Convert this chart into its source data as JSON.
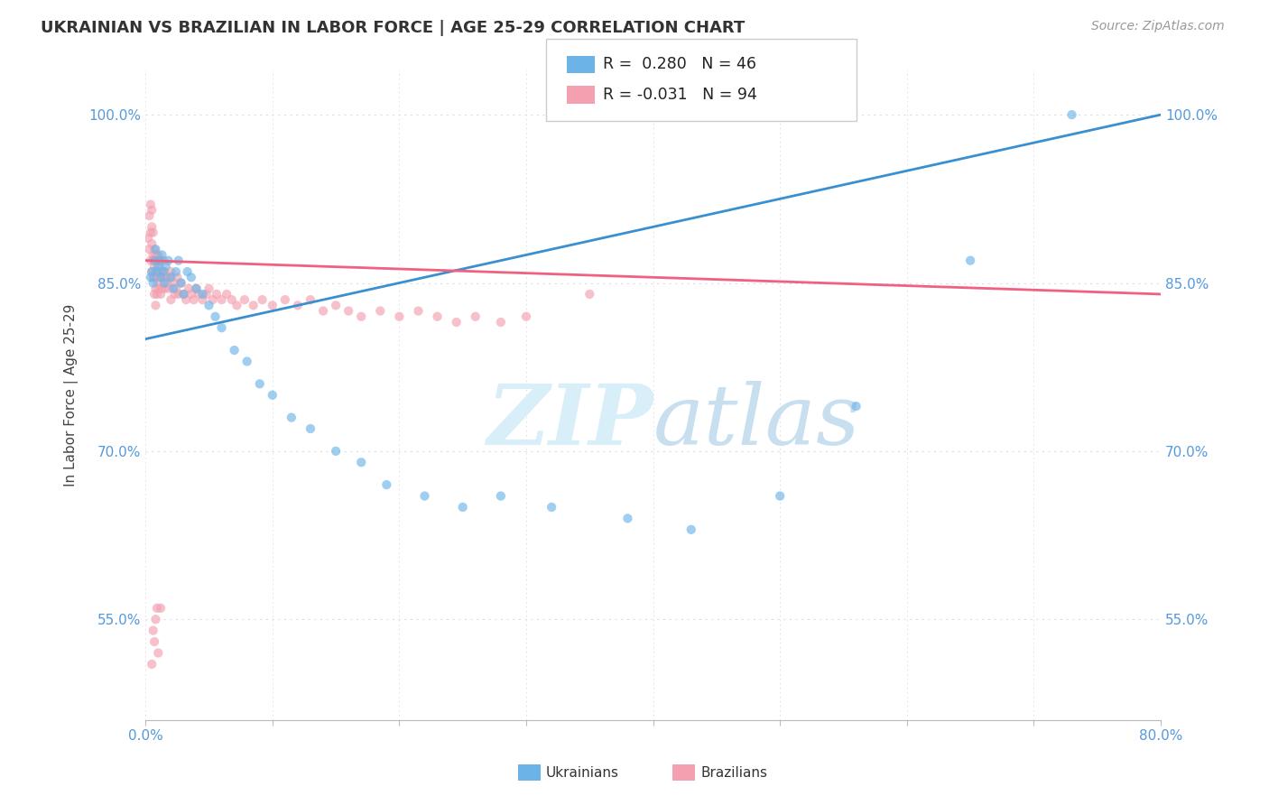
{
  "title": "UKRAINIAN VS BRAZILIAN IN LABOR FORCE | AGE 25-29 CORRELATION CHART",
  "source_text": "Source: ZipAtlas.com",
  "ylabel": "In Labor Force | Age 25-29",
  "xlim": [
    0.0,
    0.8
  ],
  "ylim": [
    0.46,
    1.04
  ],
  "xticks": [
    0.0,
    0.1,
    0.2,
    0.3,
    0.4,
    0.5,
    0.6,
    0.7,
    0.8
  ],
  "xticklabels": [
    "0.0%",
    "",
    "",
    "",
    "",
    "",
    "",
    "",
    "80.0%"
  ],
  "yticks": [
    0.55,
    0.7,
    0.85,
    1.0
  ],
  "yticklabels": [
    "55.0%",
    "70.0%",
    "85.0%",
    "100.0%"
  ],
  "legend_R_ukrainian": "0.280",
  "legend_N_ukrainian": "46",
  "legend_R_brazilian": "-0.031",
  "legend_N_brazilian": "94",
  "ukrainian_color": "#6cb4e8",
  "brazilian_color": "#f4a0b0",
  "trend_ukrainian_color": "#3a8fd1",
  "trend_brazilian_color": "#f06080",
  "watermark_color": "#d8eef8",
  "dot_size": 55,
  "dot_alpha": 0.65,
  "grid_color": "#dddddd",
  "background_color": "#ffffff",
  "ukrainian_x": [
    0.004,
    0.005,
    0.006,
    0.007,
    0.008,
    0.009,
    0.01,
    0.011,
    0.012,
    0.013,
    0.014,
    0.015,
    0.016,
    0.018,
    0.02,
    0.022,
    0.024,
    0.026,
    0.028,
    0.03,
    0.033,
    0.036,
    0.04,
    0.045,
    0.05,
    0.055,
    0.06,
    0.07,
    0.08,
    0.09,
    0.1,
    0.115,
    0.13,
    0.15,
    0.17,
    0.19,
    0.22,
    0.25,
    0.28,
    0.32,
    0.38,
    0.43,
    0.5,
    0.56,
    0.65,
    0.73
  ],
  "ukrainian_y": [
    0.855,
    0.86,
    0.85,
    0.87,
    0.88,
    0.86,
    0.865,
    0.87,
    0.855,
    0.875,
    0.86,
    0.85,
    0.865,
    0.87,
    0.855,
    0.845,
    0.86,
    0.87,
    0.85,
    0.84,
    0.86,
    0.855,
    0.845,
    0.84,
    0.83,
    0.82,
    0.81,
    0.79,
    0.78,
    0.76,
    0.75,
    0.73,
    0.72,
    0.7,
    0.69,
    0.67,
    0.66,
    0.65,
    0.66,
    0.65,
    0.64,
    0.63,
    0.66,
    0.74,
    0.87,
    1.0
  ],
  "brazilian_x": [
    0.002,
    0.003,
    0.003,
    0.004,
    0.004,
    0.004,
    0.005,
    0.005,
    0.005,
    0.005,
    0.006,
    0.006,
    0.006,
    0.006,
    0.007,
    0.007,
    0.007,
    0.007,
    0.008,
    0.008,
    0.008,
    0.008,
    0.009,
    0.009,
    0.009,
    0.01,
    0.01,
    0.01,
    0.011,
    0.011,
    0.012,
    0.012,
    0.012,
    0.013,
    0.013,
    0.014,
    0.014,
    0.015,
    0.015,
    0.016,
    0.017,
    0.018,
    0.019,
    0.02,
    0.02,
    0.022,
    0.023,
    0.024,
    0.025,
    0.026,
    0.028,
    0.03,
    0.032,
    0.034,
    0.036,
    0.038,
    0.04,
    0.042,
    0.045,
    0.048,
    0.05,
    0.053,
    0.056,
    0.06,
    0.064,
    0.068,
    0.072,
    0.078,
    0.085,
    0.092,
    0.1,
    0.11,
    0.12,
    0.13,
    0.14,
    0.15,
    0.16,
    0.17,
    0.185,
    0.2,
    0.215,
    0.23,
    0.245,
    0.26,
    0.28,
    0.3,
    0.005,
    0.006,
    0.007,
    0.008,
    0.009,
    0.01,
    0.012,
    0.35
  ],
  "brazilian_y": [
    0.89,
    0.88,
    0.91,
    0.87,
    0.895,
    0.92,
    0.86,
    0.885,
    0.9,
    0.915,
    0.855,
    0.875,
    0.895,
    0.87,
    0.865,
    0.88,
    0.855,
    0.84,
    0.875,
    0.86,
    0.845,
    0.83,
    0.87,
    0.855,
    0.84,
    0.875,
    0.86,
    0.85,
    0.865,
    0.845,
    0.87,
    0.855,
    0.84,
    0.86,
    0.845,
    0.87,
    0.855,
    0.86,
    0.845,
    0.855,
    0.85,
    0.845,
    0.855,
    0.86,
    0.835,
    0.85,
    0.84,
    0.845,
    0.855,
    0.84,
    0.85,
    0.84,
    0.835,
    0.845,
    0.84,
    0.835,
    0.845,
    0.84,
    0.835,
    0.84,
    0.845,
    0.835,
    0.84,
    0.835,
    0.84,
    0.835,
    0.83,
    0.835,
    0.83,
    0.835,
    0.83,
    0.835,
    0.83,
    0.835,
    0.825,
    0.83,
    0.825,
    0.82,
    0.825,
    0.82,
    0.825,
    0.82,
    0.815,
    0.82,
    0.815,
    0.82,
    0.51,
    0.54,
    0.53,
    0.55,
    0.56,
    0.52,
    0.56,
    0.84
  ],
  "trend_ukrainian_x0": 0.0,
  "trend_ukrainian_y0": 0.8,
  "trend_ukrainian_x1": 0.8,
  "trend_ukrainian_y1": 1.0,
  "trend_brazilian_x0": 0.0,
  "trend_brazilian_y0": 0.87,
  "trend_brazilian_x1": 0.8,
  "trend_brazilian_y1": 0.84
}
